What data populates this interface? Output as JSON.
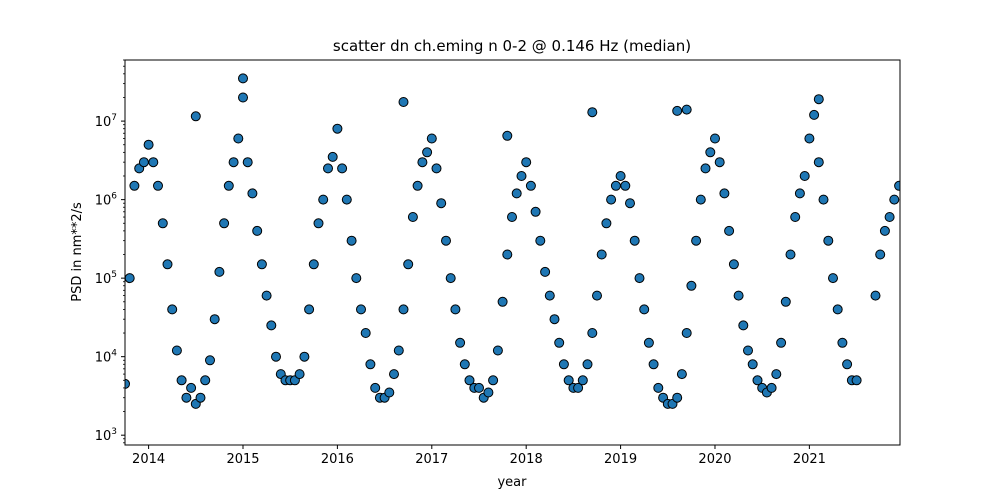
{
  "chart_data": {
    "type": "scatter",
    "title": "scatter dn ch.eming n 0-2 @ 0.146 Hz (median)",
    "xlabel": "year",
    "ylabel": "PSD in nm**2/s",
    "x_ticks": [
      "2014",
      "2015",
      "2016",
      "2017",
      "2018",
      "2019",
      "2020",
      "2021"
    ],
    "y_ticks": [
      {
        "value": 1000,
        "base": "10",
        "exp": "3"
      },
      {
        "value": 10000,
        "base": "10",
        "exp": "4"
      },
      {
        "value": 100000,
        "base": "10",
        "exp": "5"
      },
      {
        "value": 1000000,
        "base": "10",
        "exp": "6"
      },
      {
        "value": 10000000,
        "base": "10",
        "exp": "7"
      }
    ],
    "xlim": [
      2013.75,
      2021.96
    ],
    "ylim": [
      750,
      60000000
    ],
    "yscale": "log",
    "grid": false,
    "marker_color": "#1f77b4",
    "marker_edge_color": "#000000",
    "series": [
      {
        "x": [
          2013.75,
          2013.8,
          2013.85,
          2013.9,
          2013.95,
          2014.0,
          2014.05,
          2014.1,
          2014.15,
          2014.2,
          2014.25,
          2014.3,
          2014.35,
          2014.4,
          2014.45,
          2014.5,
          2014.55,
          2014.6,
          2014.65,
          2014.7,
          2014.75,
          2014.8,
          2014.85,
          2014.9,
          2014.95,
          2015.0,
          2015.05,
          2015.1,
          2015.15,
          2015.2,
          2015.25,
          2015.3,
          2015.35,
          2015.4,
          2015.45,
          2015.5,
          2015.55,
          2015.6,
          2015.65,
          2015.7,
          2015.75,
          2015.8,
          2015.85,
          2015.9,
          2015.95,
          2016.0,
          2016.05,
          2016.1,
          2016.15,
          2016.2,
          2016.25,
          2016.3,
          2016.35,
          2016.4,
          2016.45,
          2016.5,
          2016.55,
          2016.6,
          2016.65,
          2016.7,
          2016.75,
          2016.8,
          2016.85,
          2016.9,
          2016.95,
          2017.0,
          2017.05,
          2017.1,
          2017.15,
          2017.2,
          2017.25,
          2017.3,
          2017.35,
          2017.4,
          2017.45,
          2017.5,
          2017.55,
          2017.6,
          2017.65,
          2017.7,
          2017.75,
          2017.8,
          2017.85,
          2017.9,
          2017.95,
          2018.0,
          2018.05,
          2018.1,
          2018.15,
          2018.2,
          2018.25,
          2018.3,
          2018.35,
          2018.4,
          2018.45,
          2018.5,
          2018.55,
          2018.6,
          2018.65,
          2018.7,
          2018.75,
          2018.8,
          2018.85,
          2018.9,
          2018.95,
          2019.0,
          2019.05,
          2019.1,
          2019.15,
          2019.2,
          2019.25,
          2019.3,
          2019.35,
          2019.4,
          2019.45,
          2019.5,
          2019.55,
          2019.6,
          2019.65,
          2019.7,
          2019.75,
          2019.8,
          2019.85,
          2019.9,
          2019.95,
          2020.0,
          2020.05,
          2020.1,
          2020.15,
          2020.2,
          2020.25,
          2020.3,
          2020.35,
          2020.4,
          2020.45,
          2020.5,
          2020.55,
          2020.6,
          2020.65,
          2020.7,
          2020.75,
          2020.8,
          2020.85,
          2020.9,
          2020.95,
          2021.0,
          2021.05,
          2021.1,
          2021.15,
          2021.2,
          2021.25,
          2021.3,
          2021.35,
          2021.4,
          2021.45,
          2021.5,
          2021.7,
          2021.75,
          2021.8,
          2021.85,
          2021.9,
          2021.95,
          2014.5,
          2015.0,
          2016.7,
          2017.8,
          2018.7,
          2019.6,
          2019.7,
          2021.1
        ],
        "y": [
          4500,
          100000,
          1500000,
          2500000,
          3000000,
          5000000,
          3000000,
          1500000,
          500000,
          150000,
          40000,
          12000,
          5000,
          3000,
          4000,
          2500,
          3000,
          5000,
          9000,
          30000,
          120000,
          500000,
          1500000,
          3000000,
          6000000,
          20000000,
          3000000,
          1200000,
          400000,
          150000,
          60000,
          25000,
          10000,
          6000,
          5000,
          5000,
          5000,
          6000,
          10000,
          40000,
          150000,
          500000,
          1000000,
          2500000,
          3500000,
          8000000,
          2500000,
          1000000,
          300000,
          100000,
          40000,
          20000,
          8000,
          4000,
          3000,
          3000,
          3500,
          6000,
          12000,
          40000,
          150000,
          600000,
          1500000,
          3000000,
          4000000,
          6000000,
          2500000,
          900000,
          300000,
          100000,
          40000,
          15000,
          8000,
          5000,
          4000,
          4000,
          3000,
          3500,
          5000,
          12000,
          50000,
          200000,
          600000,
          1200000,
          2000000,
          3000000,
          1500000,
          700000,
          300000,
          120000,
          60000,
          30000,
          15000,
          8000,
          5000,
          4000,
          4000,
          5000,
          8000,
          20000,
          60000,
          200000,
          500000,
          1000000,
          1500000,
          2000000,
          1500000,
          900000,
          300000,
          100000,
          40000,
          15000,
          8000,
          4000,
          3000,
          2500,
          2500,
          3000,
          6000,
          20000,
          80000,
          300000,
          1000000,
          2500000,
          4000000,
          6000000,
          3000000,
          1200000,
          400000,
          150000,
          60000,
          25000,
          12000,
          8000,
          5000,
          4000,
          3500,
          4000,
          6000,
          15000,
          50000,
          200000,
          600000,
          1200000,
          2000000,
          6000000,
          12000000,
          3000000,
          1000000,
          300000,
          100000,
          40000,
          15000,
          8000,
          5000,
          5000,
          60000,
          200000,
          400000,
          600000,
          1000000,
          1500000,
          11500000,
          35000000,
          17500000,
          6500000,
          13000000,
          13500000,
          14000000,
          19000000
        ]
      }
    ]
  }
}
